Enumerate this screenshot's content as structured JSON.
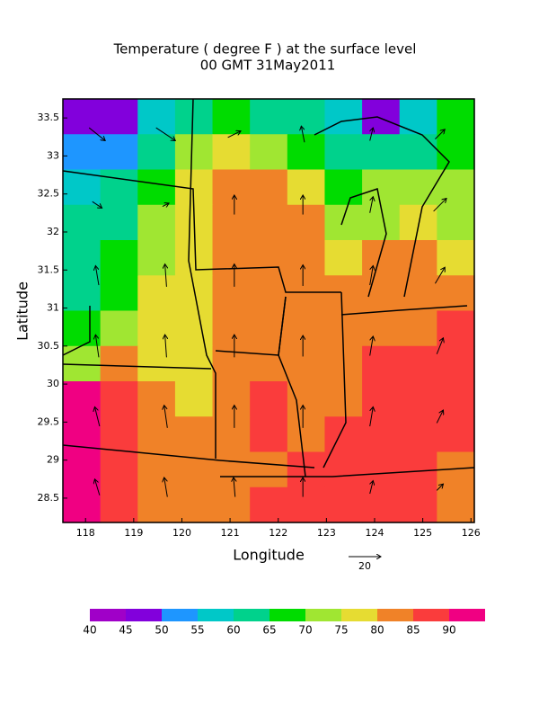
{
  "chart_data": {
    "type": "contour",
    "title": "Temperature ( degree F ) at the surface level",
    "subtitle": "00 GMT 31May2011",
    "xlabel": "Longitude",
    "ylabel": "Latitude",
    "xlim": [
      117.53,
      126.07
    ],
    "ylim": [
      28.18,
      33.75
    ],
    "xticks": [
      118,
      119,
      120,
      121,
      122,
      123,
      124,
      125,
      126
    ],
    "yticks": [
      28.5,
      29,
      29.5,
      30,
      30.5,
      31,
      31.5,
      32,
      32.5,
      33,
      33.5
    ],
    "temperature": [
      [
        47,
        48,
        55,
        63,
        68,
        62,
        60,
        55,
        48,
        58,
        66
      ],
      [
        52,
        52,
        60,
        74,
        76,
        72,
        68,
        62,
        60,
        62,
        68
      ],
      [
        58,
        60,
        66,
        77,
        80,
        82,
        76,
        68,
        70,
        72,
        70
      ],
      [
        62,
        63,
        70,
        77,
        82,
        80,
        82,
        74,
        72,
        76,
        74
      ],
      [
        63,
        65,
        73,
        78,
        80,
        82,
        84,
        78,
        80,
        82,
        76
      ],
      [
        64,
        68,
        76,
        79,
        80,
        83,
        84,
        82,
        84,
        83,
        82
      ],
      [
        66,
        74,
        78,
        79,
        82,
        84,
        83,
        84,
        84,
        84,
        86
      ],
      [
        72,
        82,
        78,
        78,
        84,
        84,
        83,
        84,
        85,
        86,
        87
      ],
      [
        90,
        88,
        82,
        79,
        84,
        86,
        82,
        84,
        86,
        86,
        87
      ],
      [
        92,
        86,
        82,
        80,
        82,
        85,
        84,
        87,
        86,
        88,
        86
      ],
      [
        92,
        87,
        84,
        82,
        84,
        84,
        86,
        87,
        86,
        86,
        82
      ],
      [
        92,
        87,
        84,
        82,
        84,
        85,
        86,
        87,
        86,
        85,
        82
      ]
    ],
    "colorbar": {
      "levels": [
        40,
        45,
        50,
        55,
        60,
        65,
        70,
        75,
        80,
        85,
        90
      ],
      "colors": [
        "#a000c8",
        "#8200dc",
        "#1e96ff",
        "#00c8c8",
        "#00d28c",
        "#00dc00",
        "#a0e632",
        "#e6dc32",
        "#f08228",
        "#fa3c3c",
        "#f00082"
      ]
    },
    "wind": {
      "u": [
        [
          10,
          12,
          8,
          -2,
          2,
          6
        ],
        [
          6,
          4,
          0,
          0,
          2,
          8
        ],
        [
          -2,
          -1,
          0,
          0,
          2,
          6
        ],
        [
          -2,
          -1,
          0,
          0,
          2,
          4
        ],
        [
          -3,
          -2,
          0,
          0,
          2,
          4
        ],
        [
          -3,
          -2,
          -1,
          0,
          2,
          4
        ]
      ],
      "v": [
        [
          -8,
          -8,
          4,
          10,
          8,
          6
        ],
        [
          -4,
          2,
          12,
          12,
          10,
          8
        ],
        [
          12,
          14,
          14,
          13,
          12,
          10
        ],
        [
          14,
          14,
          14,
          13,
          12,
          10
        ],
        [
          12,
          14,
          14,
          14,
          12,
          8
        ],
        [
          10,
          12,
          12,
          12,
          8,
          4
        ]
      ],
      "reference": 20
    }
  }
}
